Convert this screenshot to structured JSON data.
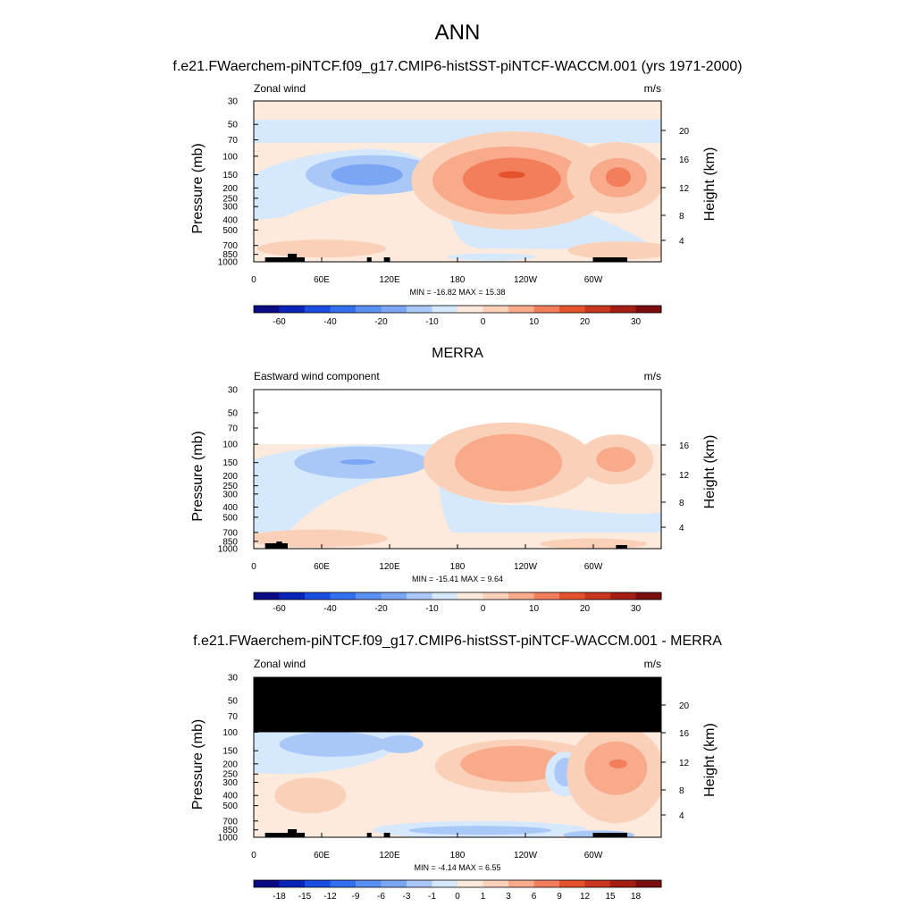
{
  "figure": {
    "title": "ANN",
    "y_tick_labels": [
      "30",
      "50",
      "70",
      "100",
      "150",
      "200",
      "250",
      "300",
      "400",
      "500",
      "700",
      "850",
      "1000"
    ],
    "x_tick_labels": [
      "0",
      "60E",
      "120E",
      "180",
      "120W",
      "60W"
    ],
    "y_label": "Pressure (mb)",
    "y2_label": "Height (km)"
  },
  "panels": [
    {
      "title": "f.e21.FWaerchem-piNTCF.f09_g17.CMIP6-histSST-piNTCF-WACCM.001 (yrs 1971-2000)",
      "left_label": "Zonal wind",
      "right_label": "m/s",
      "stats": "MIN = -16.82  MAX =  15.38",
      "height_ticks": [
        "4",
        "8",
        "12",
        "16",
        "20"
      ],
      "colorbar_labels": [
        "-60",
        "-40",
        "-20",
        "-10",
        "0",
        "10",
        "20",
        "30"
      ]
    },
    {
      "title": "MERRA",
      "left_label": "Eastward wind component",
      "right_label": "m/s",
      "stats": "MIN = -15.41  MAX =   9.64",
      "height_ticks": [
        "4",
        "8",
        "12",
        "16"
      ],
      "colorbar_labels": [
        "-60",
        "-40",
        "-20",
        "-10",
        "0",
        "10",
        "20",
        "30"
      ]
    },
    {
      "title": "f.e21.FWaerchem-piNTCF.f09_g17.CMIP6-histSST-piNTCF-WACCM.001 - MERRA",
      "left_label": "Zonal wind",
      "right_label": "m/s",
      "stats": "MIN =  -4.14  MAX =  6.55",
      "height_ticks": [
        "4",
        "8",
        "12",
        "16",
        "20"
      ],
      "colorbar_labels": [
        "-18",
        "-15",
        "-12",
        "-9",
        "-6",
        "-3",
        "-1",
        "0",
        "1",
        "3",
        "6",
        "9",
        "12",
        "15",
        "18"
      ]
    }
  ],
  "colors": {
    "zero_band": "#fdeadc",
    "weak_negative": "#d6e8fb",
    "mid_negative": "#a9c8f7",
    "strong_negative": "#7aa6f3",
    "weak_positive": "#fbd0b9",
    "mid_positive": "#f8aa8b",
    "strong_positive": "#f37e5c",
    "core_positive": "#e5532c",
    "masked": "#000000",
    "palette": [
      "#0a0a84",
      "#0a23b8",
      "#1a4ee0",
      "#3370f0",
      "#5a8ff4",
      "#7aa6f3",
      "#a9c8f7",
      "#d6e8fb",
      "#fdeadc",
      "#fbd0b9",
      "#f8aa8b",
      "#f37e5c",
      "#e5532c",
      "#c8361e",
      "#a41e14",
      "#7a0d0d"
    ]
  },
  "chart_data": [
    {
      "type": "heatmap",
      "title": "f.e21.FWaerchem-piNTCF.f09_g17.CMIP6-histSST-piNTCF-WACCM.001 (yrs 1971-2000)",
      "field": "Zonal wind",
      "units": "m/s",
      "x_ticks": [
        "0",
        "60E",
        "120E",
        "180",
        "120W",
        "60W"
      ],
      "xlim": [
        0,
        360
      ],
      "y_ticks_mb": [
        30,
        50,
        70,
        100,
        150,
        200,
        250,
        300,
        400,
        500,
        700,
        850,
        1000
      ],
      "ylim_mb": [
        1000,
        30
      ],
      "y_scale": "log",
      "contour_levels": [
        -60,
        -40,
        -20,
        -10,
        0,
        10,
        20,
        30
      ],
      "min": -16.82,
      "max": 15.38,
      "features": [
        {
          "sign": "negative",
          "lon_center": 100,
          "pressure_mb": 150,
          "peak_ms": -16.82
        },
        {
          "sign": "positive",
          "lon_center": 230,
          "pressure_mb": 175,
          "peak_ms": 15.38
        },
        {
          "sign": "positive",
          "lon_center": 320,
          "pressure_mb": 160,
          "peak_ms": 12
        }
      ]
    },
    {
      "type": "heatmap",
      "title": "MERRA",
      "field": "Eastward wind component",
      "units": "m/s",
      "x_ticks": [
        "0",
        "60E",
        "120E",
        "180",
        "120W",
        "60W"
      ],
      "xlim": [
        0,
        360
      ],
      "y_ticks_mb": [
        30,
        50,
        70,
        100,
        150,
        200,
        250,
        300,
        400,
        500,
        700,
        850,
        1000
      ],
      "ylim_mb": [
        1000,
        30
      ],
      "data_top_mb": 100,
      "y_scale": "log",
      "contour_levels": [
        -60,
        -40,
        -20,
        -10,
        0,
        10,
        20,
        30
      ],
      "min": -15.41,
      "max": 9.64,
      "features": [
        {
          "sign": "negative",
          "lon_center": 95,
          "pressure_mb": 145,
          "peak_ms": -15.41
        },
        {
          "sign": "positive",
          "lon_center": 225,
          "pressure_mb": 160,
          "peak_ms": 9.64
        },
        {
          "sign": "positive",
          "lon_center": 320,
          "pressure_mb": 150,
          "peak_ms": 8
        }
      ]
    },
    {
      "type": "heatmap",
      "title": "f.e21.FWaerchem-piNTCF.f09_g17.CMIP6-histSST-piNTCF-WACCM.001 - MERRA",
      "field": "Zonal wind",
      "units": "m/s",
      "x_ticks": [
        "0",
        "60E",
        "120E",
        "180",
        "120W",
        "60W"
      ],
      "xlim": [
        0,
        360
      ],
      "y_ticks_mb": [
        30,
        50,
        70,
        100,
        150,
        200,
        250,
        300,
        400,
        500,
        700,
        850,
        1000
      ],
      "ylim_mb": [
        1000,
        30
      ],
      "masked_above_mb": 100,
      "y_scale": "log",
      "contour_levels": [
        -18,
        -15,
        -12,
        -9,
        -6,
        -3,
        -1,
        0,
        1,
        3,
        6,
        9,
        12,
        15,
        18
      ],
      "min": -4.14,
      "max": 6.55,
      "features": [
        {
          "sign": "negative",
          "lon_center": 70,
          "pressure_mb": 130,
          "peak_ms": -4.14
        },
        {
          "sign": "positive",
          "lon_center": 230,
          "pressure_mb": 200,
          "peak_ms": 4
        },
        {
          "sign": "negative",
          "lon_center": 275,
          "pressure_mb": 220,
          "peak_ms": -3
        },
        {
          "sign": "positive",
          "lon_center": 320,
          "pressure_mb": 200,
          "peak_ms": 6.55
        }
      ]
    }
  ]
}
